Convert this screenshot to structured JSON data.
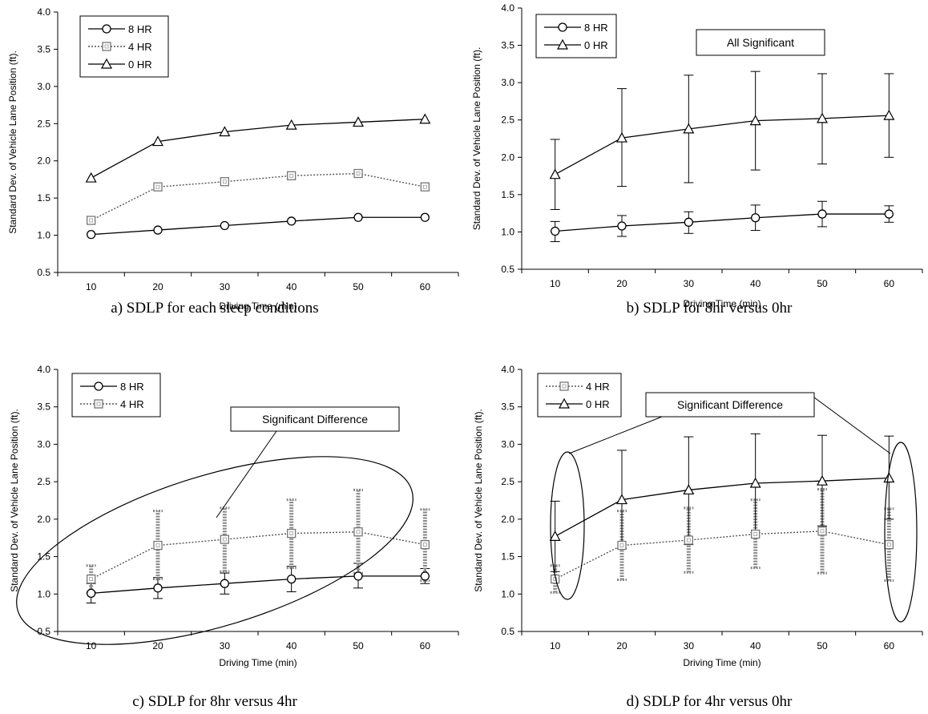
{
  "chart_data": [
    {
      "type": "line",
      "caption": "a) SDLP for each sleep conditions",
      "xlabel": "Driving Time (min)",
      "ylabel": "Standard Dev. of Vehicle Lane Position (ft).",
      "x": [
        10,
        20,
        30,
        40,
        50,
        60
      ],
      "ylim": [
        0.5,
        4.0
      ],
      "yticks": [
        "0.5",
        "1.0",
        "1.5",
        "2.0",
        "2.5",
        "3.0",
        "3.5",
        "4.0"
      ],
      "legend_position": "top-left",
      "annotations": [],
      "series": [
        {
          "name": "8 HR",
          "marker": "circle",
          "style": "solid",
          "values": [
            1.01,
            1.07,
            1.13,
            1.19,
            1.24,
            1.24
          ]
        },
        {
          "name": "4 HR",
          "marker": "square",
          "style": "dotted",
          "values": [
            1.2,
            1.65,
            1.72,
            1.8,
            1.83,
            1.65
          ]
        },
        {
          "name": "0 HR",
          "marker": "triangle",
          "style": "solid",
          "values": [
            1.77,
            2.26,
            2.39,
            2.48,
            2.52,
            2.56
          ]
        }
      ]
    },
    {
      "type": "line",
      "caption": "b) SDLP for 8hr versus 0hr",
      "xlabel": "Driving Time (min)",
      "ylabel": "Standard Dev. of Vehicle Lane Position (ft).",
      "x": [
        10,
        20,
        30,
        40,
        50,
        60
      ],
      "ylim": [
        0.5,
        4.0
      ],
      "yticks": [
        "0.5",
        "1.0",
        "1.5",
        "2.0",
        "2.5",
        "3.0",
        "3.5",
        "4.0"
      ],
      "legend_position": "top-left",
      "annotations": [
        "All Significant"
      ],
      "series": [
        {
          "name": "8 HR",
          "marker": "circle",
          "style": "solid",
          "values": [
            1.01,
            1.08,
            1.13,
            1.19,
            1.24,
            1.24
          ],
          "error_low": [
            0.87,
            0.94,
            0.98,
            1.02,
            1.07,
            1.13
          ],
          "error_high": [
            1.14,
            1.22,
            1.27,
            1.36,
            1.41,
            1.35
          ]
        },
        {
          "name": "0 HR",
          "marker": "triangle",
          "style": "solid",
          "values": [
            1.77,
            2.26,
            2.38,
            2.49,
            2.52,
            2.56
          ],
          "error_low": [
            1.3,
            1.61,
            1.66,
            1.83,
            1.91,
            2.0
          ],
          "error_high": [
            2.24,
            2.92,
            3.1,
            3.15,
            3.12,
            3.12
          ]
        }
      ]
    },
    {
      "type": "line",
      "caption": "c) SDLP for 8hr versus 4hr",
      "xlabel": "Driving Time (min)",
      "ylabel": "Standard Dev. of Vehicle Lane Position (ft).",
      "x": [
        10,
        20,
        30,
        40,
        50,
        60
      ],
      "ylim": [
        0.5,
        4.0
      ],
      "yticks": [
        "0.5",
        "1.0",
        "1.5",
        "2.0",
        "2.5",
        "3.0",
        "3.5",
        "4.0"
      ],
      "legend_position": "top-left",
      "annotations": [
        "Significant Difference"
      ],
      "series": [
        {
          "name": "8 HR",
          "marker": "circle",
          "style": "solid",
          "values": [
            1.01,
            1.08,
            1.14,
            1.2,
            1.24,
            1.24
          ],
          "error_low": [
            0.88,
            0.94,
            1.0,
            1.03,
            1.08,
            1.14
          ],
          "error_high": [
            1.14,
            1.22,
            1.28,
            1.37,
            1.41,
            1.34
          ]
        },
        {
          "name": "4 HR",
          "marker": "square",
          "style": "dotted",
          "values": [
            1.2,
            1.65,
            1.73,
            1.81,
            1.83,
            1.66
          ],
          "error_low": [
            1.02,
            1.2,
            1.3,
            1.35,
            1.28,
            1.18
          ],
          "error_high": [
            1.38,
            2.11,
            2.15,
            2.26,
            2.39,
            2.13
          ]
        }
      ]
    },
    {
      "type": "line",
      "caption": "d) SDLP for 4hr versus 0hr",
      "xlabel": "Driving Time (min)",
      "ylabel": "Standard Dev. of Vehicle Lane Position (ft).",
      "x": [
        10,
        20,
        30,
        40,
        50,
        60
      ],
      "ylim": [
        0.5,
        4.0
      ],
      "yticks": [
        "0.5",
        "1.0",
        "1.5",
        "2.0",
        "2.5",
        "3.0",
        "3.5",
        "4.0"
      ],
      "legend_position": "top-left",
      "annotations": [
        "Significant Difference"
      ],
      "series": [
        {
          "name": "4 HR",
          "marker": "square",
          "style": "dotted",
          "values": [
            1.2,
            1.65,
            1.72,
            1.8,
            1.84,
            1.66
          ],
          "error_low": [
            1.02,
            1.19,
            1.29,
            1.35,
            1.28,
            1.18
          ],
          "error_high": [
            1.38,
            2.11,
            2.15,
            2.26,
            2.4,
            2.14
          ]
        },
        {
          "name": "0 HR",
          "marker": "triangle",
          "style": "solid",
          "values": [
            1.77,
            2.26,
            2.39,
            2.48,
            2.51,
            2.55
          ],
          "error_low": [
            1.3,
            1.61,
            1.66,
            1.82,
            1.91,
            2.0
          ],
          "error_high": [
            2.24,
            2.92,
            3.1,
            3.14,
            3.12,
            3.11
          ]
        }
      ]
    }
  ]
}
